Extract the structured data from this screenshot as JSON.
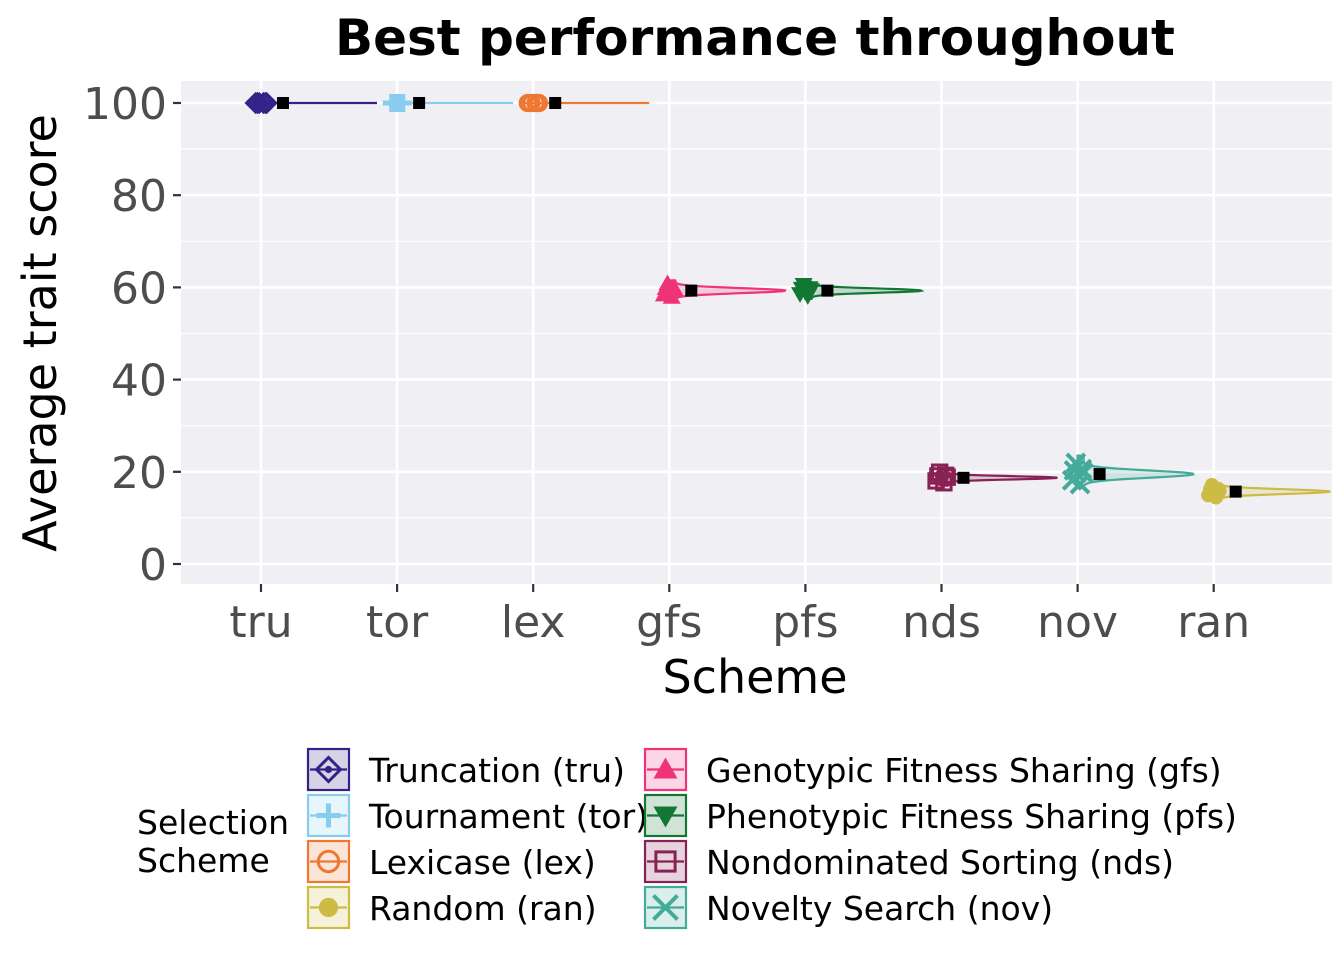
{
  "chart_data": {
    "type": "violin",
    "title": "Best performance throughout",
    "xlabel": "Scheme",
    "ylabel": "Average trait score",
    "ylim": [
      0,
      100
    ],
    "yticks": [
      0,
      20,
      40,
      60,
      80,
      100
    ],
    "categories": [
      "tru",
      "tor",
      "lex",
      "gfs",
      "pfs",
      "nds",
      "nov",
      "ran"
    ],
    "series": [
      {
        "code": "tru",
        "name": "Truncation (tru)",
        "color": "#332288",
        "marker": "diamond",
        "mean": 100.0,
        "min": 100.0,
        "max": 100.0,
        "spread": 0.4
      },
      {
        "code": "tor",
        "name": "Tournament (tor)",
        "color": "#88CCEE",
        "marker": "plus",
        "mean": 100.0,
        "min": 100.0,
        "max": 100.0,
        "spread": 0.4
      },
      {
        "code": "lex",
        "name": "Lexicase (lex)",
        "color": "#EE7733",
        "marker": "circle-open",
        "mean": 100.0,
        "min": 100.0,
        "max": 100.0,
        "spread": 0.4
      },
      {
        "code": "gfs",
        "name": "Genotypic Fitness Sharing (gfs)",
        "color": "#EE3377",
        "marker": "triangle-up",
        "mean": 59.3,
        "min": 57.0,
        "max": 61.5,
        "spread": 1.4
      },
      {
        "code": "pfs",
        "name": "Phenotypic Fitness Sharing (pfs)",
        "color": "#117733",
        "marker": "triangle-down",
        "mean": 59.3,
        "min": 57.5,
        "max": 61.2,
        "spread": 1.2
      },
      {
        "code": "nds",
        "name": "Nondominated Sorting (nds)",
        "color": "#882255",
        "marker": "square-open",
        "mean": 18.7,
        "min": 17.0,
        "max": 20.5,
        "spread": 0.9
      },
      {
        "code": "nov",
        "name": "Novelty Search (nov)",
        "color": "#44AA99",
        "marker": "cross",
        "mean": 19.5,
        "min": 16.5,
        "max": 23.5,
        "spread": 2.0
      },
      {
        "code": "ran",
        "name": "Random (ran)",
        "color": "#CCBB44",
        "marker": "circle",
        "mean": 15.7,
        "min": 13.5,
        "max": 17.5,
        "spread": 1.3
      }
    ],
    "legend": {
      "title": "Selection Scheme",
      "title_lines": [
        "Selection",
        "Scheme"
      ],
      "placement": "bottom",
      "order": [
        "tru",
        "tor",
        "lex",
        "ran",
        "gfs",
        "pfs",
        "nds",
        "nov"
      ]
    },
    "grid": true
  }
}
